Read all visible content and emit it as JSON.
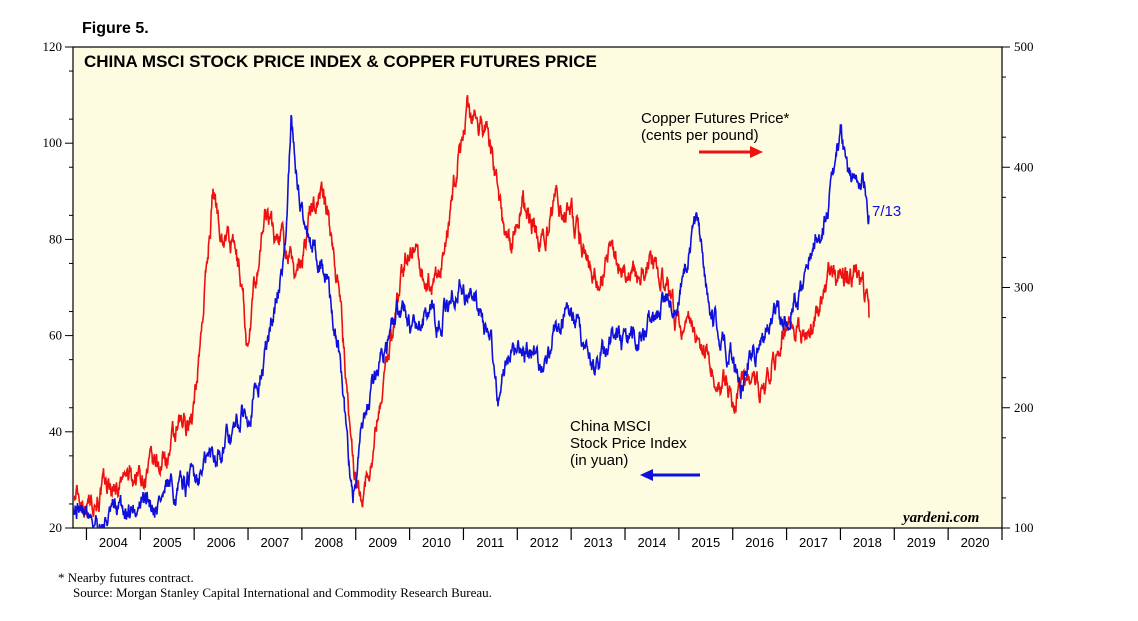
{
  "figure_label": "Figure 5.",
  "chart_data": {
    "type": "line",
    "title": "CHINA MSCI STOCK PRICE INDEX & COPPER FUTURES PRICE",
    "x_range": [
      2003.75,
      2021
    ],
    "x_ticks": [
      "2004",
      "2005",
      "2006",
      "2007",
      "2008",
      "2009",
      "2010",
      "2011",
      "2012",
      "2013",
      "2014",
      "2015",
      "2016",
      "2017",
      "2018",
      "2019",
      "2020"
    ],
    "y_left": {
      "range": [
        20,
        120
      ],
      "ticks": [
        "20",
        "40",
        "60",
        "80",
        "100",
        "120"
      ]
    },
    "y_right": {
      "range": [
        100,
        500
      ],
      "ticks": [
        "100",
        "200",
        "300",
        "400",
        "500"
      ]
    },
    "background": "#fdfbe0",
    "series": [
      {
        "name": "China MSCI Stock Price Index (in yuan)",
        "axis": "left",
        "color": "#1010dd",
        "points": [
          [
            2003.75,
            26
          ],
          [
            2003.9,
            24
          ],
          [
            2004.1,
            22
          ],
          [
            2004.3,
            21
          ],
          [
            2004.5,
            23
          ],
          [
            2004.75,
            24
          ],
          [
            2005.0,
            25
          ],
          [
            2005.25,
            25.5
          ],
          [
            2005.5,
            27
          ],
          [
            2005.75,
            28
          ],
          [
            2006.0,
            31
          ],
          [
            2006.25,
            34
          ],
          [
            2006.5,
            37
          ],
          [
            2006.75,
            40
          ],
          [
            2007.0,
            45
          ],
          [
            2007.25,
            52
          ],
          [
            2007.5,
            65
          ],
          [
            2007.7,
            80
          ],
          [
            2007.8,
            103
          ],
          [
            2007.95,
            90
          ],
          [
            2008.1,
            82
          ],
          [
            2008.3,
            77
          ],
          [
            2008.5,
            70
          ],
          [
            2008.7,
            55
          ],
          [
            2008.85,
            36
          ],
          [
            2008.95,
            27
          ],
          [
            2009.1,
            38
          ],
          [
            2009.3,
            48
          ],
          [
            2009.5,
            57
          ],
          [
            2009.7,
            62
          ],
          [
            2009.9,
            66
          ],
          [
            2010.1,
            61
          ],
          [
            2010.3,
            64
          ],
          [
            2010.5,
            63
          ],
          [
            2010.75,
            66
          ],
          [
            2010.9,
            70
          ],
          [
            2011.1,
            68
          ],
          [
            2011.3,
            66
          ],
          [
            2011.5,
            58
          ],
          [
            2011.65,
            48
          ],
          [
            2011.8,
            56
          ],
          [
            2012.0,
            55
          ],
          [
            2012.25,
            57
          ],
          [
            2012.5,
            52
          ],
          [
            2012.75,
            62
          ],
          [
            2013.0,
            65
          ],
          [
            2013.25,
            58
          ],
          [
            2013.5,
            53
          ],
          [
            2013.75,
            61
          ],
          [
            2014.0,
            58
          ],
          [
            2014.25,
            60
          ],
          [
            2014.5,
            63
          ],
          [
            2014.75,
            65
          ],
          [
            2015.0,
            69
          ],
          [
            2015.25,
            80
          ],
          [
            2015.35,
            85
          ],
          [
            2015.5,
            70
          ],
          [
            2015.75,
            60
          ],
          [
            2016.0,
            56
          ],
          [
            2016.15,
            50
          ],
          [
            2016.35,
            55
          ],
          [
            2016.6,
            60
          ],
          [
            2016.8,
            65
          ],
          [
            2017.0,
            62
          ],
          [
            2017.25,
            70
          ],
          [
            2017.5,
            78
          ],
          [
            2017.75,
            86
          ],
          [
            2017.9,
            95
          ],
          [
            2018.0,
            102
          ],
          [
            2018.15,
            92
          ],
          [
            2018.3,
            96
          ],
          [
            2018.45,
            92
          ],
          [
            2018.53,
            85
          ]
        ]
      },
      {
        "name": "Copper Futures Price* (cents per pound)",
        "axis": "right",
        "color": "#ee1111",
        "points": [
          [
            2003.75,
            128
          ],
          [
            2004.0,
            125
          ],
          [
            2004.25,
            130
          ],
          [
            2004.5,
            135
          ],
          [
            2004.75,
            140
          ],
          [
            2005.0,
            145
          ],
          [
            2005.25,
            148
          ],
          [
            2005.5,
            160
          ],
          [
            2005.75,
            180
          ],
          [
            2006.0,
            200
          ],
          [
            2006.2,
            300
          ],
          [
            2006.35,
            380
          ],
          [
            2006.5,
            350
          ],
          [
            2006.75,
            330
          ],
          [
            2006.9,
            300
          ],
          [
            2007.0,
            245
          ],
          [
            2007.15,
            310
          ],
          [
            2007.35,
            370
          ],
          [
            2007.5,
            340
          ],
          [
            2007.65,
            350
          ],
          [
            2007.85,
            310
          ],
          [
            2008.0,
            330
          ],
          [
            2008.2,
            370
          ],
          [
            2008.4,
            380
          ],
          [
            2008.55,
            340
          ],
          [
            2008.7,
            300
          ],
          [
            2008.85,
            200
          ],
          [
            2009.0,
            140
          ],
          [
            2009.1,
            130
          ],
          [
            2009.3,
            160
          ],
          [
            2009.5,
            220
          ],
          [
            2009.7,
            270
          ],
          [
            2009.9,
            320
          ],
          [
            2010.1,
            340
          ],
          [
            2010.3,
            295
          ],
          [
            2010.5,
            300
          ],
          [
            2010.7,
            340
          ],
          [
            2010.9,
            410
          ],
          [
            2011.1,
            450
          ],
          [
            2011.25,
            430
          ],
          [
            2011.45,
            440
          ],
          [
            2011.6,
            390
          ],
          [
            2011.75,
            340
          ],
          [
            2011.9,
            330
          ],
          [
            2012.1,
            380
          ],
          [
            2012.3,
            350
          ],
          [
            2012.5,
            340
          ],
          [
            2012.75,
            370
          ],
          [
            2013.0,
            360
          ],
          [
            2013.25,
            330
          ],
          [
            2013.5,
            305
          ],
          [
            2013.75,
            330
          ],
          [
            2014.0,
            320
          ],
          [
            2014.25,
            310
          ],
          [
            2014.5,
            325
          ],
          [
            2014.75,
            295
          ],
          [
            2015.0,
            265
          ],
          [
            2015.25,
            275
          ],
          [
            2015.5,
            250
          ],
          [
            2015.75,
            225
          ],
          [
            2016.0,
            205
          ],
          [
            2016.25,
            220
          ],
          [
            2016.5,
            215
          ],
          [
            2016.75,
            235
          ],
          [
            2016.9,
            260
          ],
          [
            2017.1,
            270
          ],
          [
            2017.3,
            255
          ],
          [
            2017.5,
            270
          ],
          [
            2017.75,
            305
          ],
          [
            2017.95,
            310
          ],
          [
            2018.1,
            305
          ],
          [
            2018.25,
            315
          ],
          [
            2018.4,
            300
          ],
          [
            2018.5,
            290
          ],
          [
            2018.53,
            275
          ]
        ]
      }
    ],
    "annotations": {
      "copper_label_line1": "Copper Futures Price*",
      "copper_label_line2": "(cents per pound)",
      "msci_label_line1": "China MSCI",
      "msci_label_line2": "Stock Price Index",
      "msci_label_line3": "(in yuan)",
      "end_date_label": "7/13",
      "copper_arrow_direction": "right",
      "msci_arrow_direction": "left"
    },
    "brand": "yardeni.com"
  },
  "footnotes": {
    "note": "*   Nearby futures contract.",
    "source": "Source: Morgan Stanley Capital International and Commodity Research Bureau."
  }
}
